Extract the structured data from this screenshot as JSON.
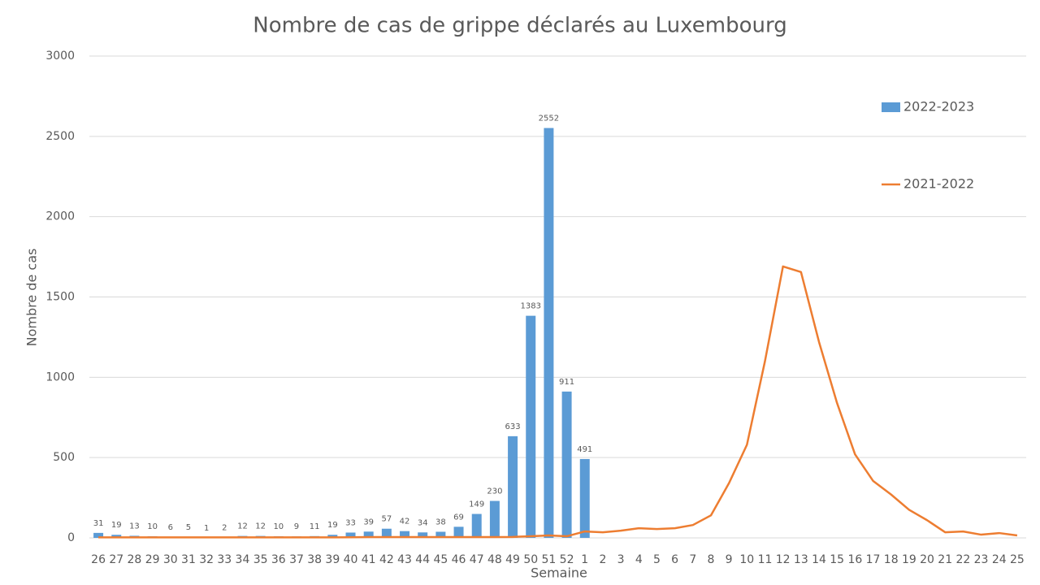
{
  "chart_data": {
    "type": "bar",
    "title": "Nombre de cas de grippe déclarés au Luxembourg",
    "x_label": "Semaine",
    "y_label": "Nombre de cas",
    "categories": [
      "26",
      "27",
      "28",
      "29",
      "30",
      "31",
      "32",
      "33",
      "34",
      "35",
      "36",
      "37",
      "38",
      "39",
      "40",
      "41",
      "42",
      "43",
      "44",
      "45",
      "46",
      "47",
      "48",
      "49",
      "50",
      "51",
      "52",
      "1",
      "2",
      "3",
      "4",
      "5",
      "6",
      "7",
      "8",
      "9",
      "10",
      "11",
      "12",
      "13",
      "14",
      "15",
      "16",
      "17",
      "18",
      "19",
      "20",
      "21",
      "22",
      "23",
      "24",
      "25"
    ],
    "series": [
      {
        "name": "2022-2023",
        "type": "bar",
        "color": "#5b9bd5",
        "data_labels": true,
        "values": [
          31,
          19,
          13,
          10,
          6,
          5,
          1,
          2,
          12,
          12,
          10,
          9,
          11,
          19,
          33,
          39,
          57,
          42,
          34,
          38,
          69,
          149,
          230,
          633,
          1383,
          2552,
          911,
          491,
          null,
          null,
          null,
          null,
          null,
          null,
          null,
          null,
          null,
          null,
          null,
          null,
          null,
          null,
          null,
          null,
          null,
          null,
          null,
          null,
          null,
          null,
          null,
          null
        ]
      },
      {
        "name": "2021-2022",
        "type": "line",
        "color": "#ed7d31",
        "values": [
          3,
          3,
          3,
          3,
          3,
          3,
          3,
          3,
          3,
          3,
          3,
          3,
          3,
          3,
          4,
          5,
          5,
          5,
          5,
          5,
          5,
          5,
          5,
          6,
          10,
          15,
          10,
          40,
          35,
          45,
          60,
          55,
          60,
          80,
          140,
          340,
          580,
          1100,
          1690,
          1655,
          1220,
          840,
          520,
          355,
          270,
          175,
          110,
          35,
          40,
          20,
          30,
          15
        ]
      }
    ],
    "ylim": [
      0,
      3000
    ],
    "yticks": [
      0,
      500,
      1000,
      1500,
      2000,
      2500,
      3000
    ],
    "grid": true,
    "legend": "right"
  }
}
